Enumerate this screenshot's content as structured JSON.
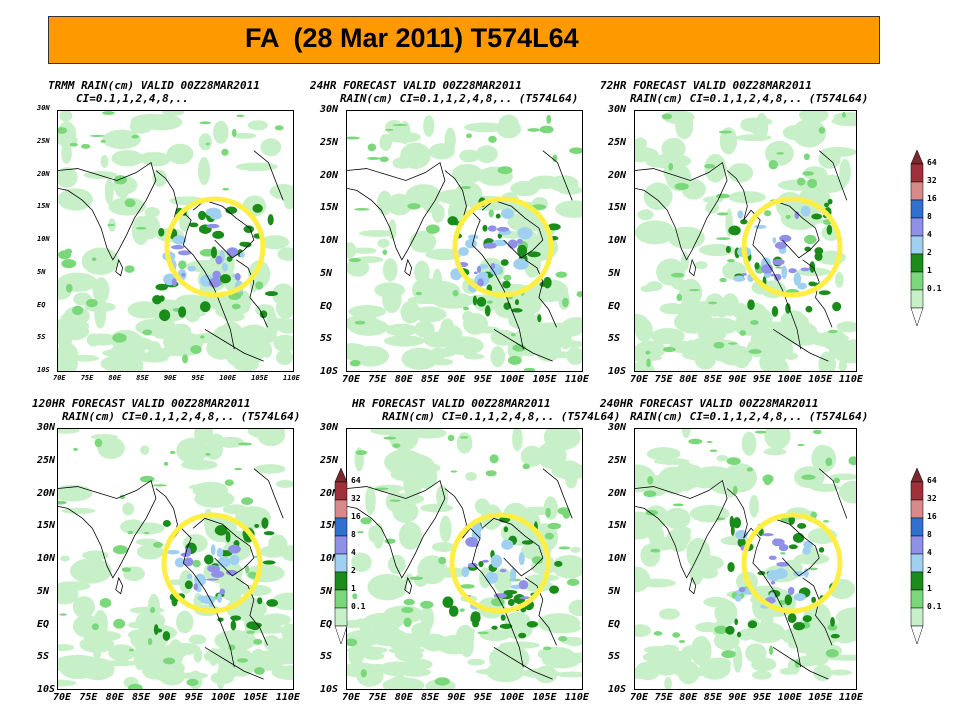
{
  "header": {
    "title": "FA  (28 Mar 2011) T574L64"
  },
  "panels": [
    {
      "line1": "TRMM RAIN(cm) VALID 00Z28MAR2011",
      "line2": "CI=0.1,1,2,4,8,.."
    },
    {
      "line1": "24HR FORECAST VALID 00Z28MAR2011",
      "line2": "RAIN(cm) CI=0.1,1,2,4,8,.. (T574L64)"
    },
    {
      "line1": "72HR FORECAST VALID 00Z28MAR2011",
      "line2": "RAIN(cm) CI=0.1,1,2,4,8,.. (T574L64)"
    },
    {
      "line1": "120HR FORECAST VALID 00Z28MAR2011",
      "line2": "RAIN(cm) CI=0.1,1,2,4,8,.. (T574L64)"
    },
    {
      "line1": "HR FORECAST VALID 00Z28MAR2011",
      "line2": "RAIN(cm) CI=0.1,1,2,4,8,.. (T574L64)"
    },
    {
      "line1": "240HR FORECAST VALID 00Z28MAR2011",
      "line2": "RAIN(cm) CI=0.1,1,2,4,8,.. (T574L64)"
    }
  ],
  "axes": {
    "lat_labels": [
      "30N",
      "25N",
      "20N",
      "15N",
      "10N",
      "5N",
      "EQ",
      "5S",
      "10S"
    ],
    "lon_labels": [
      "70E",
      "75E",
      "80E",
      "85E",
      "90E",
      "95E",
      "100E",
      "105E",
      "110E"
    ]
  },
  "colorbar": {
    "levels": [
      "64",
      "32",
      "16",
      "8",
      "4",
      "2",
      "1",
      "0.1"
    ],
    "colors": [
      "#a0303a",
      "#d88a8a",
      "#3070d0",
      "#9090e8",
      "#a0d0f0",
      "#1a8c1a",
      "#7ad87a",
      "#c8f0c8"
    ]
  },
  "highlight_color": "#ffee44"
}
